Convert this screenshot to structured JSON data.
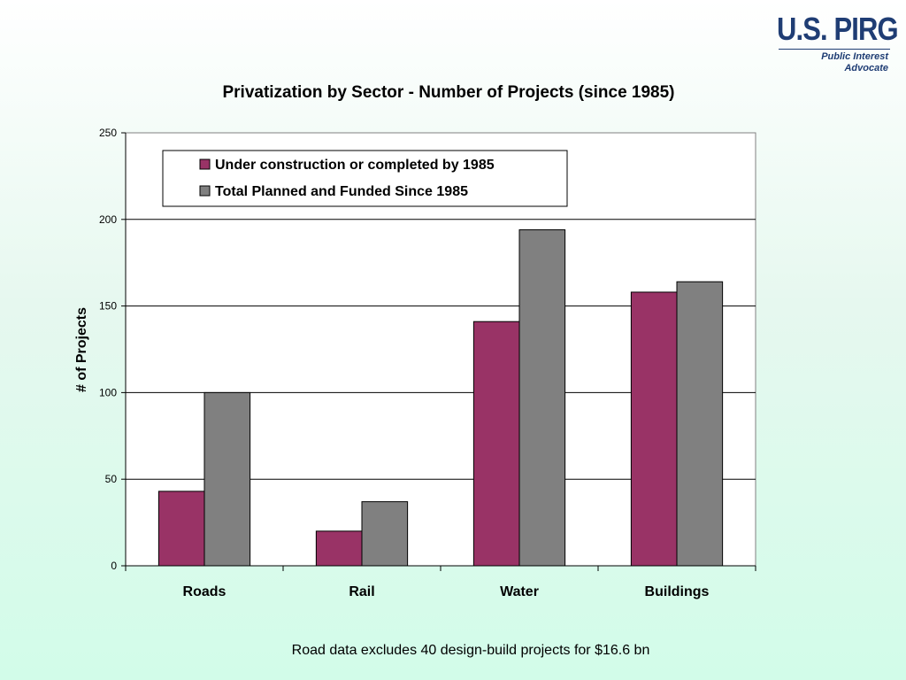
{
  "logo": {
    "name": "U.S. PIRG",
    "line1": "Public Interest",
    "line2": "Advocate",
    "color": "#1f3d74"
  },
  "chart_data": {
    "type": "bar",
    "title": "Privatization by Sector - Number of Projects (since 1985)",
    "xlabel": "",
    "ylabel": "# of Projects",
    "categories": [
      "Roads",
      "Rail",
      "Water",
      "Buildings"
    ],
    "series": [
      {
        "name": "Under construction or completed by 1985",
        "values": [
          43,
          20,
          141,
          158
        ],
        "color": "#993366"
      },
      {
        "name": "Total Planned and Funded Since 1985",
        "values": [
          100,
          37,
          194,
          164
        ],
        "color": "#808080"
      }
    ],
    "ylim": [
      0,
      250
    ],
    "yticks": [
      0,
      50,
      100,
      150,
      200,
      250
    ],
    "grid": true,
    "legend_position": "top-left"
  },
  "footnote": "Road data excludes 40 design-build projects for $16.6 bn"
}
